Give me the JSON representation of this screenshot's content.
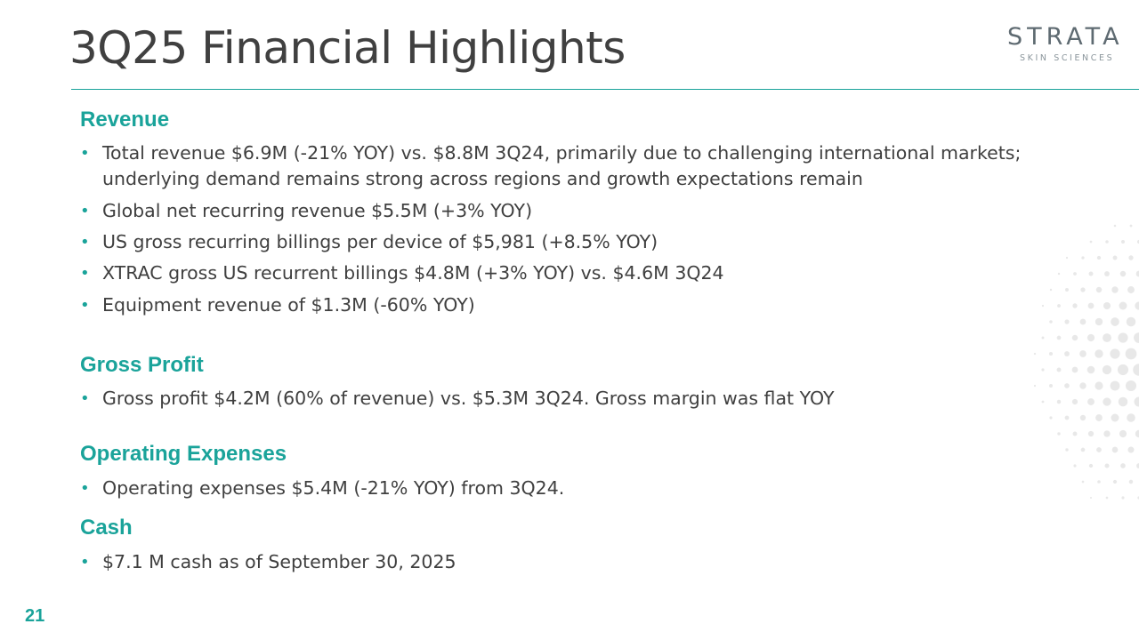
{
  "slide": {
    "title": "3Q25 Financial Highlights",
    "page_number": "21"
  },
  "logo": {
    "name": "STRATA",
    "tagline": "SKIN SCIENCES"
  },
  "colors": {
    "accent": "#1aa39a",
    "title_text": "#404040",
    "body_text": "#3f3f3f",
    "dot_pattern": "#e8e8e8"
  },
  "sections": [
    {
      "heading": "Revenue",
      "bullets": [
        "Total revenue $6.9M (-21% YOY) vs. $8.8M 3Q24, primarily due to challenging international markets; underlying demand remains strong across regions and growth expectations remain",
        "Global net recurring revenue $5.5M  (+3% YOY)",
        "US gross recurring billings per device of $5,981 (+8.5% YOY)",
        "XTRAC gross US recurrent billings $4.8M (+3% YOY) vs. $4.6M 3Q24",
        "Equipment revenue of $1.3M (-60% YOY)"
      ]
    },
    {
      "heading": "Gross Profit",
      "bullets": [
        "Gross profit $4.2M (60% of revenue) vs. $5.3M 3Q24.  Gross margin was flat YOY"
      ]
    },
    {
      "heading": "Operating Expenses",
      "bullets": [
        "Operating expenses $5.4M (-21% YOY) from 3Q24."
      ]
    },
    {
      "heading": "Cash",
      "bullets": [
        "$7.1 M cash as of September 30, 2025"
      ]
    }
  ]
}
